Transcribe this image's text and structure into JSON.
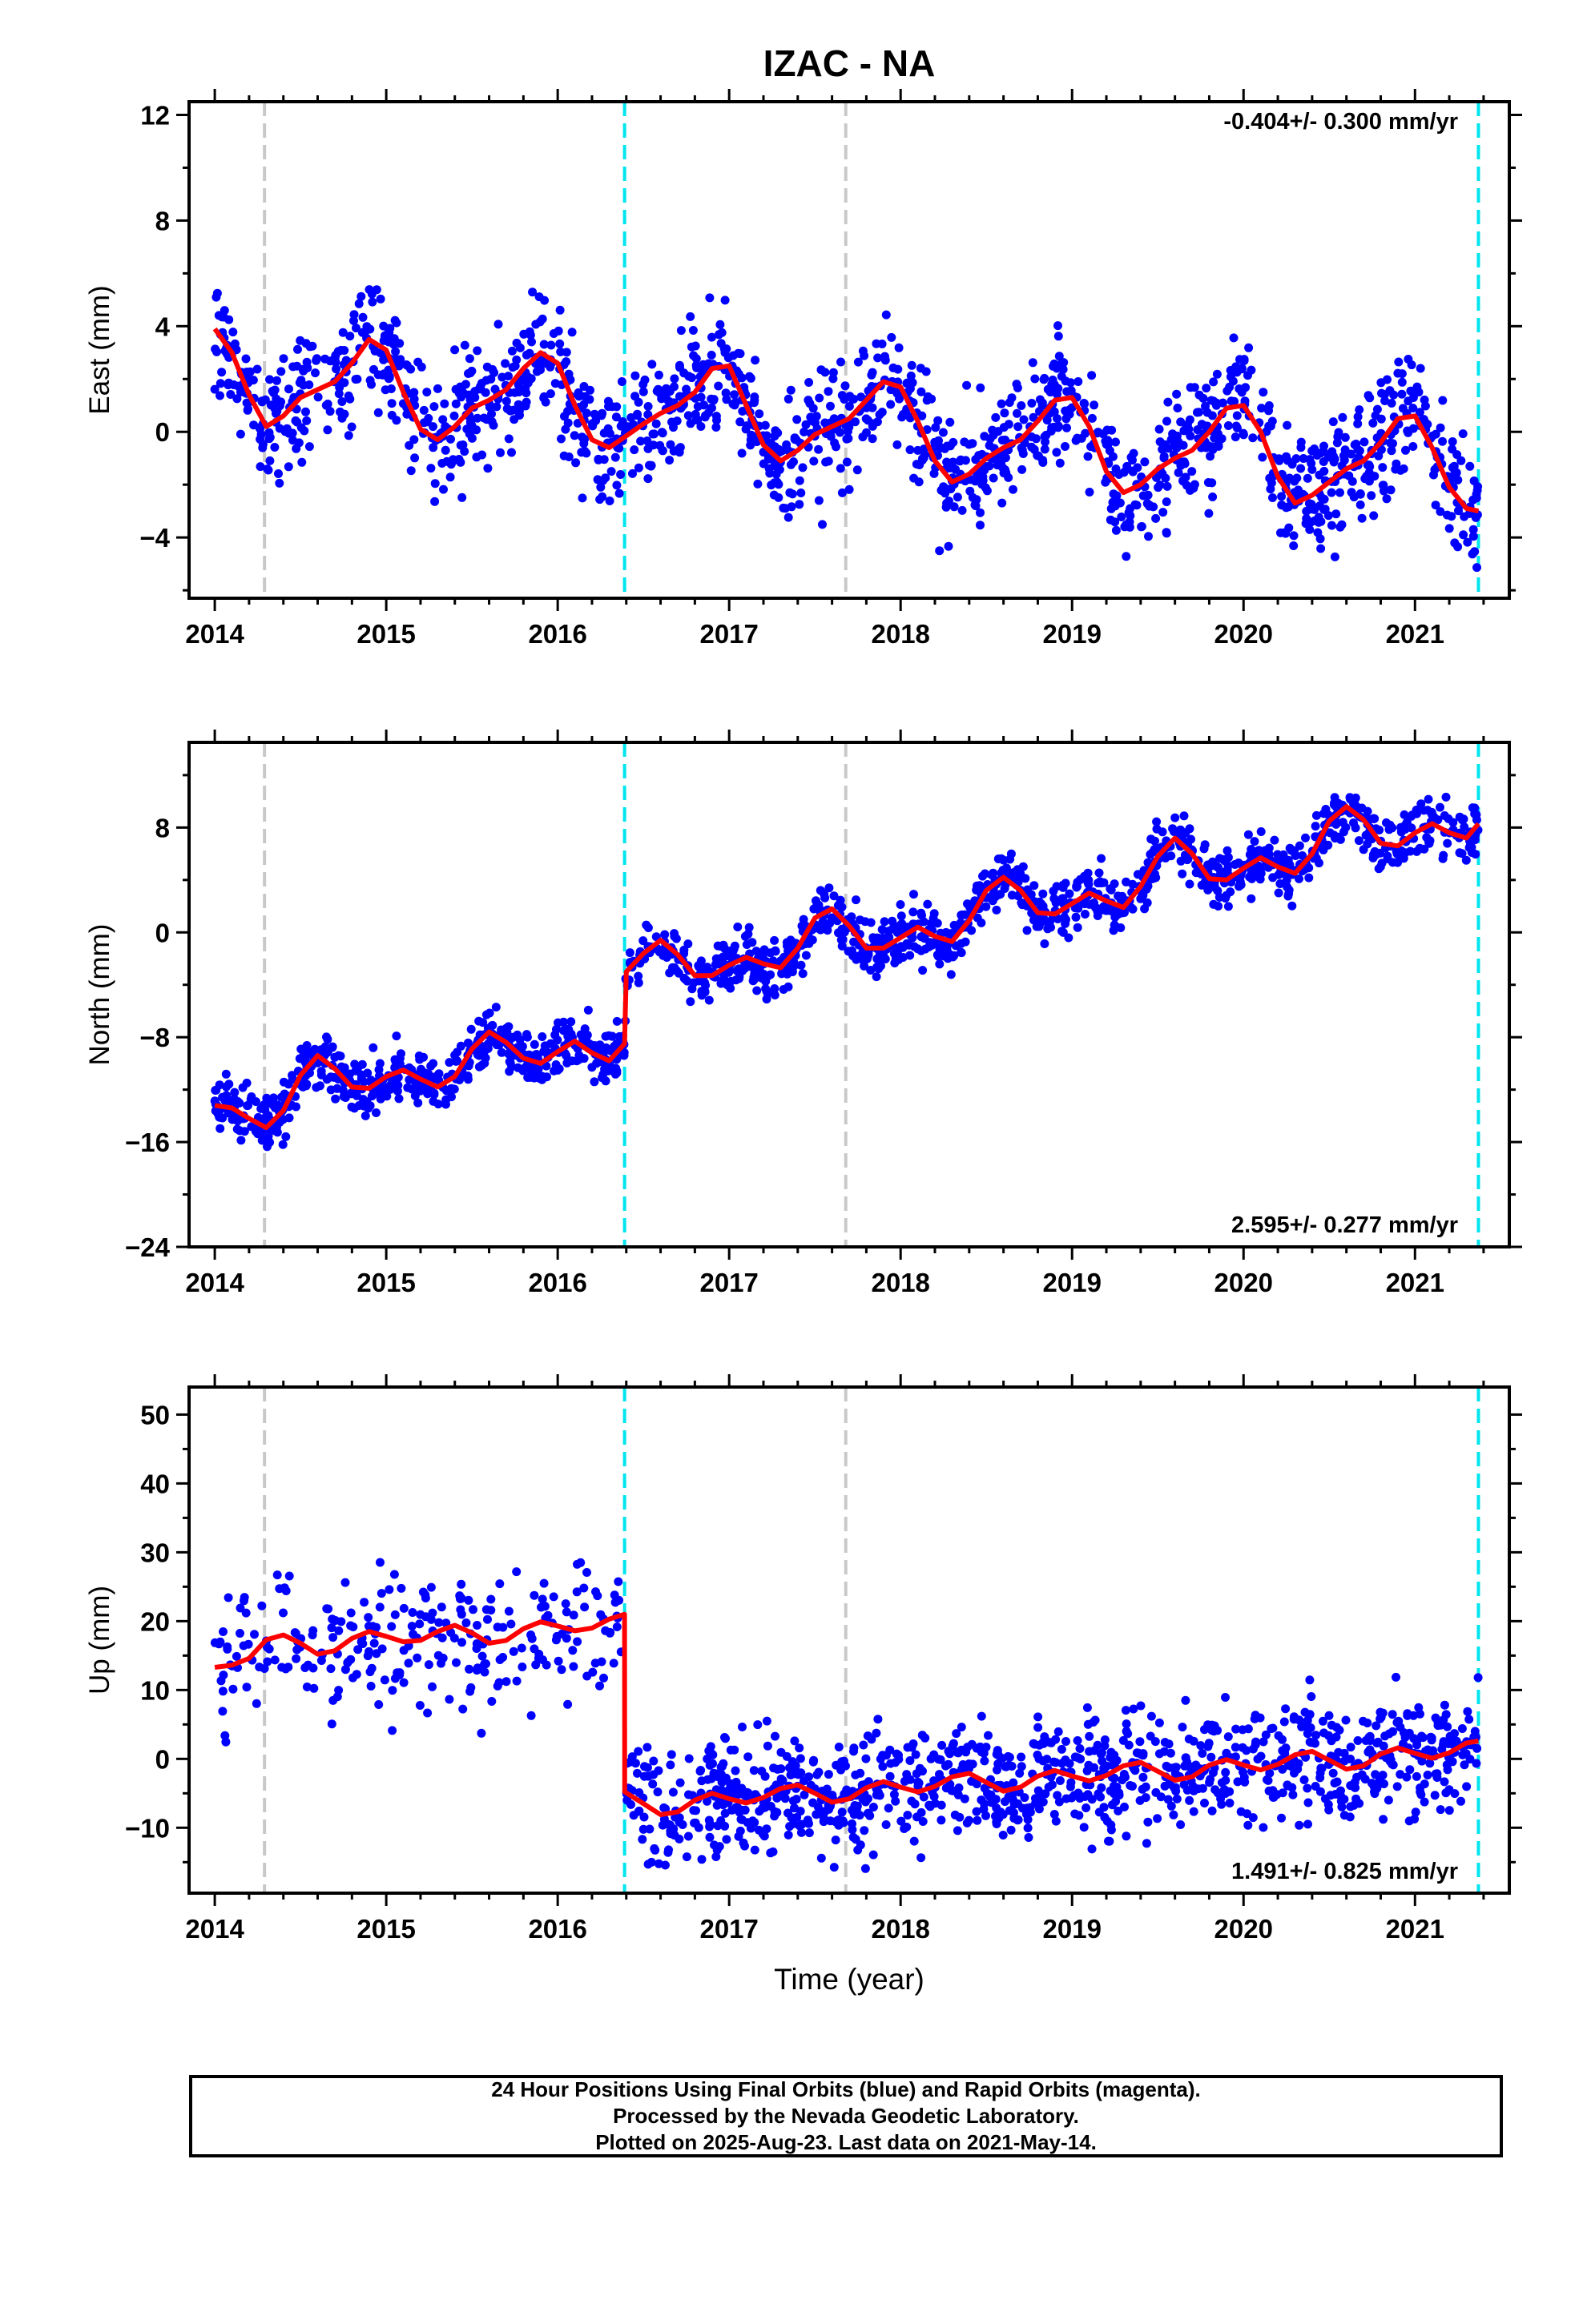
{
  "title": "IZAC - NA",
  "colors": {
    "points": "#0000ff",
    "fit": "#ff0000",
    "break_gray": "#c8c8c8",
    "break_cyan": "#00e5ee"
  },
  "chart_data": [
    {
      "type": "scatter",
      "ylabel": "East (mm)",
      "xlim": [
        2013.85,
        2021.55
      ],
      "ylim": [
        -6.3,
        12.5
      ],
      "yticks": [
        -4,
        0,
        4,
        8,
        12
      ],
      "xticks": [
        2014,
        2015,
        2016,
        2017,
        2018,
        2019,
        2020,
        2021
      ],
      "rate_label": "-0.404+/- 0.300 mm/yr",
      "rate_position": "top-right",
      "breaks": [
        {
          "x": 2014.29,
          "kind": "gray"
        },
        {
          "x": 2016.39,
          "kind": "cyan"
        },
        {
          "x": 2017.68,
          "kind": "gray"
        },
        {
          "x": 2021.37,
          "kind": "cyan"
        }
      ],
      "fit_curve": [
        [
          2014.0,
          3.9
        ],
        [
          2014.1,
          3.0
        ],
        [
          2014.2,
          1.4
        ],
        [
          2014.3,
          0.2
        ],
        [
          2014.4,
          0.6
        ],
        [
          2014.5,
          1.3
        ],
        [
          2014.6,
          1.6
        ],
        [
          2014.7,
          1.9
        ],
        [
          2014.8,
          2.6
        ],
        [
          2014.9,
          3.5
        ],
        [
          2015.0,
          3.1
        ],
        [
          2015.1,
          1.5
        ],
        [
          2015.2,
          0.1
        ],
        [
          2015.3,
          -0.3
        ],
        [
          2015.4,
          0.2
        ],
        [
          2015.5,
          0.9
        ],
        [
          2015.6,
          1.2
        ],
        [
          2015.7,
          1.6
        ],
        [
          2015.8,
          2.4
        ],
        [
          2015.9,
          3.0
        ],
        [
          2016.0,
          2.6
        ],
        [
          2016.1,
          1.0
        ],
        [
          2016.2,
          -0.3
        ],
        [
          2016.3,
          -0.6
        ],
        [
          2016.39,
          -0.2
        ],
        [
          2016.5,
          0.3
        ],
        [
          2016.6,
          0.7
        ],
        [
          2016.7,
          1.0
        ],
        [
          2016.8,
          1.5
        ],
        [
          2016.9,
          2.4
        ],
        [
          2017.0,
          2.5
        ],
        [
          2017.1,
          1.0
        ],
        [
          2017.2,
          -0.5
        ],
        [
          2017.3,
          -1.1
        ],
        [
          2017.4,
          -0.7
        ],
        [
          2017.5,
          -0.1
        ],
        [
          2017.6,
          0.2
        ],
        [
          2017.7,
          0.5
        ],
        [
          2017.8,
          1.2
        ],
        [
          2017.9,
          1.9
        ],
        [
          2018.0,
          1.7
        ],
        [
          2018.1,
          0.4
        ],
        [
          2018.2,
          -1.1
        ],
        [
          2018.3,
          -1.9
        ],
        [
          2018.4,
          -1.6
        ],
        [
          2018.5,
          -1.0
        ],
        [
          2018.6,
          -0.6
        ],
        [
          2018.7,
          -0.3
        ],
        [
          2018.8,
          0.4
        ],
        [
          2018.9,
          1.2
        ],
        [
          2019.0,
          1.3
        ],
        [
          2019.1,
          0.2
        ],
        [
          2019.2,
          -1.5
        ],
        [
          2019.3,
          -2.3
        ],
        [
          2019.4,
          -2.0
        ],
        [
          2019.5,
          -1.4
        ],
        [
          2019.6,
          -1.0
        ],
        [
          2019.7,
          -0.7
        ],
        [
          2019.8,
          0.0
        ],
        [
          2019.9,
          0.9
        ],
        [
          2020.0,
          1.0
        ],
        [
          2020.1,
          0.0
        ],
        [
          2020.2,
          -1.7
        ],
        [
          2020.3,
          -2.7
        ],
        [
          2020.4,
          -2.4
        ],
        [
          2020.5,
          -1.9
        ],
        [
          2020.6,
          -1.4
        ],
        [
          2020.7,
          -1.1
        ],
        [
          2020.8,
          -0.4
        ],
        [
          2020.9,
          0.5
        ],
        [
          2021.0,
          0.6
        ],
        [
          2021.1,
          -0.6
        ],
        [
          2021.2,
          -2.1
        ],
        [
          2021.3,
          -2.9
        ],
        [
          2021.37,
          -3.0
        ]
      ]
    },
    {
      "type": "scatter",
      "ylabel": "North (mm)",
      "xlim": [
        2013.85,
        2021.55
      ],
      "ylim": [
        -24,
        14.5
      ],
      "yticks": [
        -24,
        -16,
        -8,
        0,
        8
      ],
      "xticks": [
        2014,
        2015,
        2016,
        2017,
        2018,
        2019,
        2020,
        2021
      ],
      "rate_label": "2.595+/- 0.277 mm/yr",
      "rate_position": "bottom-right",
      "breaks": [
        {
          "x": 2014.29,
          "kind": "gray"
        },
        {
          "x": 2016.39,
          "kind": "cyan"
        },
        {
          "x": 2017.68,
          "kind": "gray"
        },
        {
          "x": 2021.37,
          "kind": "cyan"
        }
      ],
      "fit_curve": [
        [
          2014.0,
          -13.2
        ],
        [
          2014.1,
          -13.4
        ],
        [
          2014.2,
          -14.2
        ],
        [
          2014.3,
          -14.9
        ],
        [
          2014.4,
          -13.6
        ],
        [
          2014.5,
          -10.9
        ],
        [
          2014.6,
          -9.4
        ],
        [
          2014.7,
          -10.4
        ],
        [
          2014.8,
          -11.8
        ],
        [
          2014.9,
          -11.9
        ],
        [
          2015.0,
          -11.0
        ],
        [
          2015.1,
          -10.5
        ],
        [
          2015.2,
          -11.2
        ],
        [
          2015.3,
          -11.8
        ],
        [
          2015.4,
          -11.0
        ],
        [
          2015.5,
          -8.9
        ],
        [
          2015.6,
          -7.6
        ],
        [
          2015.7,
          -8.4
        ],
        [
          2015.8,
          -9.6
        ],
        [
          2015.9,
          -10.0
        ],
        [
          2016.0,
          -9.1
        ],
        [
          2016.1,
          -8.3
        ],
        [
          2016.2,
          -9.2
        ],
        [
          2016.3,
          -9.8
        ],
        [
          2016.39,
          -8.5
        ],
        [
          2016.4,
          -3.0
        ],
        [
          2016.5,
          -1.6
        ],
        [
          2016.6,
          -0.6
        ],
        [
          2016.7,
          -1.7
        ],
        [
          2016.8,
          -3.3
        ],
        [
          2016.9,
          -3.3
        ],
        [
          2017.0,
          -2.5
        ],
        [
          2017.1,
          -1.9
        ],
        [
          2017.2,
          -2.4
        ],
        [
          2017.3,
          -2.7
        ],
        [
          2017.4,
          -1.2
        ],
        [
          2017.5,
          1.1
        ],
        [
          2017.6,
          1.8
        ],
        [
          2017.7,
          0.5
        ],
        [
          2017.8,
          -1.2
        ],
        [
          2017.9,
          -1.2
        ],
        [
          2018.0,
          -0.4
        ],
        [
          2018.1,
          0.4
        ],
        [
          2018.2,
          -0.3
        ],
        [
          2018.3,
          -0.7
        ],
        [
          2018.4,
          0.9
        ],
        [
          2018.5,
          3.2
        ],
        [
          2018.6,
          4.2
        ],
        [
          2018.7,
          3.2
        ],
        [
          2018.8,
          1.5
        ],
        [
          2018.9,
          1.4
        ],
        [
          2019.0,
          2.2
        ],
        [
          2019.1,
          3.0
        ],
        [
          2019.2,
          2.4
        ],
        [
          2019.3,
          1.9
        ],
        [
          2019.4,
          3.5
        ],
        [
          2019.5,
          5.8
        ],
        [
          2019.6,
          7.2
        ],
        [
          2019.7,
          6.0
        ],
        [
          2019.8,
          4.1
        ],
        [
          2019.9,
          4.0
        ],
        [
          2020.0,
          4.9
        ],
        [
          2020.1,
          5.7
        ],
        [
          2020.2,
          5.0
        ],
        [
          2020.3,
          4.5
        ],
        [
          2020.4,
          6.0
        ],
        [
          2020.5,
          8.5
        ],
        [
          2020.6,
          9.6
        ],
        [
          2020.7,
          8.6
        ],
        [
          2020.8,
          6.8
        ],
        [
          2020.9,
          6.6
        ],
        [
          2021.0,
          7.6
        ],
        [
          2021.1,
          8.3
        ],
        [
          2021.2,
          7.6
        ],
        [
          2021.3,
          7.2
        ],
        [
          2021.37,
          8.3
        ]
      ]
    },
    {
      "type": "scatter",
      "ylabel": "Up (mm)",
      "xlabel": "Time (year)",
      "xlim": [
        2013.85,
        2021.55
      ],
      "ylim": [
        -19.5,
        54
      ],
      "yticks": [
        -10,
        0,
        10,
        20,
        30,
        40,
        50
      ],
      "xticks": [
        2014,
        2015,
        2016,
        2017,
        2018,
        2019,
        2020,
        2021
      ],
      "rate_label": "1.491+/- 0.825 mm/yr",
      "rate_position": "bottom-right",
      "breaks": [
        {
          "x": 2014.29,
          "kind": "gray"
        },
        {
          "x": 2016.39,
          "kind": "cyan"
        },
        {
          "x": 2017.68,
          "kind": "gray"
        },
        {
          "x": 2021.37,
          "kind": "cyan"
        }
      ],
      "fit_curve": [
        [
          2014.0,
          13.3
        ],
        [
          2014.1,
          13.6
        ],
        [
          2014.2,
          14.6
        ],
        [
          2014.3,
          17.3
        ],
        [
          2014.4,
          18.0
        ],
        [
          2014.5,
          16.8
        ],
        [
          2014.6,
          15.2
        ],
        [
          2014.7,
          15.7
        ],
        [
          2014.8,
          17.5
        ],
        [
          2014.9,
          18.5
        ],
        [
          2015.0,
          17.8
        ],
        [
          2015.1,
          17.0
        ],
        [
          2015.2,
          17.2
        ],
        [
          2015.3,
          18.5
        ],
        [
          2015.4,
          19.4
        ],
        [
          2015.5,
          18.3
        ],
        [
          2015.6,
          16.8
        ],
        [
          2015.7,
          17.2
        ],
        [
          2015.8,
          18.9
        ],
        [
          2015.9,
          19.9
        ],
        [
          2016.0,
          19.3
        ],
        [
          2016.1,
          18.6
        ],
        [
          2016.2,
          19.0
        ],
        [
          2016.3,
          20.3
        ],
        [
          2016.39,
          21.0
        ],
        [
          2016.391,
          -4.8
        ],
        [
          2016.5,
          -6.5
        ],
        [
          2016.6,
          -8.1
        ],
        [
          2016.7,
          -7.7
        ],
        [
          2016.8,
          -6.0
        ],
        [
          2016.9,
          -5.0
        ],
        [
          2017.0,
          -5.8
        ],
        [
          2017.1,
          -6.4
        ],
        [
          2017.2,
          -5.6
        ],
        [
          2017.3,
          -4.3
        ],
        [
          2017.4,
          -3.8
        ],
        [
          2017.5,
          -5.0
        ],
        [
          2017.6,
          -6.3
        ],
        [
          2017.7,
          -5.8
        ],
        [
          2017.8,
          -4.2
        ],
        [
          2017.9,
          -3.3
        ],
        [
          2018.0,
          -4.1
        ],
        [
          2018.1,
          -4.8
        ],
        [
          2018.2,
          -4.0
        ],
        [
          2018.3,
          -2.6
        ],
        [
          2018.4,
          -2.1
        ],
        [
          2018.5,
          -3.4
        ],
        [
          2018.6,
          -4.7
        ],
        [
          2018.7,
          -4.1
        ],
        [
          2018.8,
          -2.5
        ],
        [
          2018.9,
          -1.7
        ],
        [
          2019.0,
          -2.5
        ],
        [
          2019.1,
          -3.2
        ],
        [
          2019.2,
          -2.4
        ],
        [
          2019.3,
          -1.0
        ],
        [
          2019.4,
          -0.5
        ],
        [
          2019.5,
          -1.8
        ],
        [
          2019.6,
          -3.1
        ],
        [
          2019.7,
          -2.6
        ],
        [
          2019.8,
          -0.9
        ],
        [
          2019.9,
          -0.1
        ],
        [
          2020.0,
          -0.9
        ],
        [
          2020.1,
          -1.6
        ],
        [
          2020.2,
          -0.8
        ],
        [
          2020.3,
          0.6
        ],
        [
          2020.4,
          1.1
        ],
        [
          2020.5,
          -0.2
        ],
        [
          2020.6,
          -1.5
        ],
        [
          2020.7,
          -1.0
        ],
        [
          2020.8,
          0.7
        ],
        [
          2020.9,
          1.6
        ],
        [
          2021.0,
          0.8
        ],
        [
          2021.1,
          0.1
        ],
        [
          2021.2,
          0.9
        ],
        [
          2021.3,
          2.3
        ],
        [
          2021.37,
          2.6
        ]
      ]
    }
  ],
  "caption": {
    "line1": "24 Hour Positions Using Final Orbits (blue) and Rapid Orbits (magenta).",
    "line2": "Processed by the Nevada Geodetic Laboratory.",
    "line3": "Plotted on 2025-Aug-23. Last data on 2021-May-14."
  }
}
